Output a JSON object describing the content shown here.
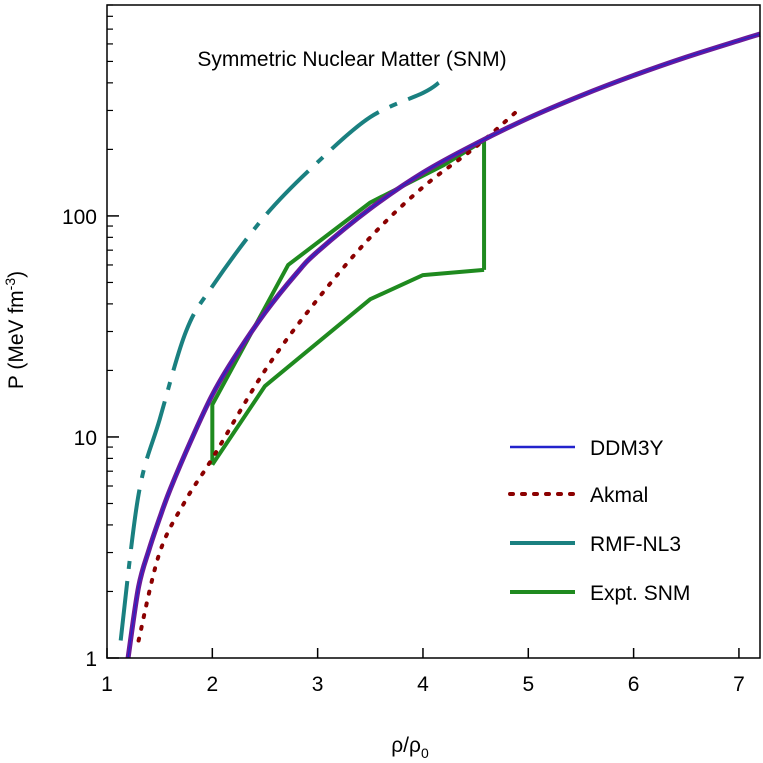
{
  "chart_data": {
    "type": "line",
    "title": "Symmetric Nuclear Matter (SNM)",
    "xlabel_base": "ρ/ρ",
    "xlabel_sub": "0",
    "ylabel_base": "P (MeV fm",
    "ylabel_sup": "-3",
    "ylabel_end": ")",
    "xscale": "linear",
    "yscale": "log",
    "xlim": [
      1,
      7.2
    ],
    "ylim": [
      1,
      900
    ],
    "x_ticks": [
      1,
      2,
      3,
      4,
      5,
      6,
      7
    ],
    "x_tick_labels": [
      "1",
      "2",
      "3",
      "4",
      "5",
      "6",
      "7"
    ],
    "y_major_ticks": [
      1,
      10,
      100
    ],
    "y_tick_labels": [
      "1",
      "10",
      "100"
    ],
    "y_minor_ticks": [
      2,
      3,
      4,
      5,
      6,
      7,
      8,
      9,
      20,
      30,
      40,
      50,
      60,
      70,
      80,
      90,
      200,
      300,
      400,
      500,
      600,
      700,
      800,
      900
    ],
    "legend_position": "bottom-right",
    "series": [
      {
        "name": "DDM3Y",
        "style": "solid-double",
        "color": "#6a1a9a",
        "inner_color": "#2222cc",
        "x": [
          1.2,
          1.3,
          1.4,
          1.5,
          1.6,
          1.8,
          2.0,
          2.2,
          2.5,
          2.8,
          3.0,
          3.5,
          4.0,
          4.5,
          5.0,
          5.5,
          6.0,
          6.5,
          7.0,
          7.2
        ],
        "y": [
          1.0,
          2.1,
          3.1,
          4.3,
          5.8,
          9.7,
          15.5,
          22.5,
          36.5,
          55,
          69,
          108,
          157,
          212,
          277,
          350,
          432,
          523,
          622,
          665
        ]
      },
      {
        "name": "Akmal",
        "style": "dotted",
        "color": "#8b0000",
        "x": [
          1.3,
          1.5,
          1.75,
          2.0,
          2.5,
          3.0,
          3.5,
          4.0,
          4.5,
          4.9
        ],
        "y": [
          1.2,
          3.0,
          5.2,
          8.0,
          20,
          42,
          80,
          135,
          205,
          300
        ]
      },
      {
        "name": "RMF-NL3",
        "style": "dash-dot",
        "color": "#1a8080",
        "x": [
          1.13,
          1.3,
          1.5,
          1.75,
          2.0,
          2.5,
          3.0,
          3.5,
          4.0,
          4.15
        ],
        "y": [
          1.2,
          5.5,
          12,
          30,
          48,
          100,
          175,
          280,
          360,
          400
        ]
      }
    ],
    "region": {
      "name": "Expt. SNM",
      "color": "#1f8a1f",
      "upper_x": [
        2.0,
        2.0,
        2.72,
        3.5,
        4.2,
        4.58
      ],
      "upper_y": [
        7.5,
        14,
        60,
        115,
        170,
        220
      ],
      "lower_x": [
        2.0,
        2.5,
        3.5,
        4.0,
        4.58
      ],
      "lower_y": [
        7.5,
        17,
        42,
        54,
        57
      ],
      "right_x": 4.58
    }
  }
}
